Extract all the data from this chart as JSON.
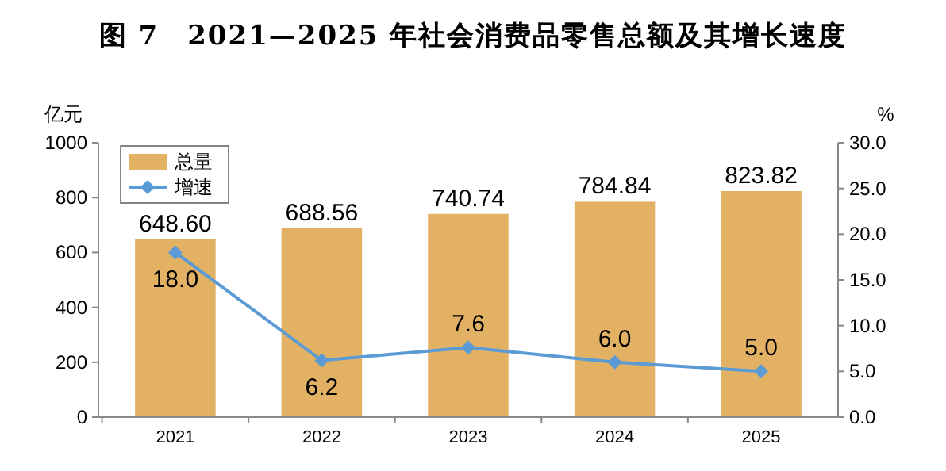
{
  "chart_data": {
    "type": "bar",
    "title": "图 7　2021—2025 年社会消费品零售总额及其增长速度",
    "ylabel": "亿元",
    "y2label": "%",
    "categories": [
      "2021",
      "2022",
      "2023",
      "2024",
      "2025"
    ],
    "series": [
      {
        "name": "总量",
        "color": "#e3b163",
        "values": [
          648.6,
          688.56,
          740.74,
          784.84,
          823.82
        ],
        "value_labels": [
          "648.60",
          "688.56",
          "740.74",
          "784.84",
          "823.82"
        ]
      },
      {
        "name": "增速",
        "type": "line",
        "axis": "y2",
        "color": "#5b9bd5",
        "values": [
          18.0,
          6.2,
          7.6,
          6.0,
          5.0
        ],
        "value_labels": [
          "18.0",
          "6.2",
          "7.6",
          "6.0",
          "5.0"
        ]
      }
    ],
    "ylim": [
      0,
      1000
    ],
    "yticks": [
      0,
      200,
      400,
      600,
      800,
      1000
    ],
    "y2lim": [
      0,
      30
    ],
    "y2ticks": [
      {
        "value": 0,
        "label": "0.0"
      },
      {
        "value": 5,
        "label": "5.0"
      },
      {
        "value": 10,
        "label": "10.0"
      },
      {
        "value": 15,
        "label": "15.0"
      },
      {
        "value": 20,
        "label": "20.0"
      },
      {
        "value": 25,
        "label": "25.0"
      },
      {
        "value": 30,
        "label": "30.0"
      }
    ],
    "legend": "top left",
    "marker": "diamond",
    "line_style": "solid",
    "grid": false
  }
}
